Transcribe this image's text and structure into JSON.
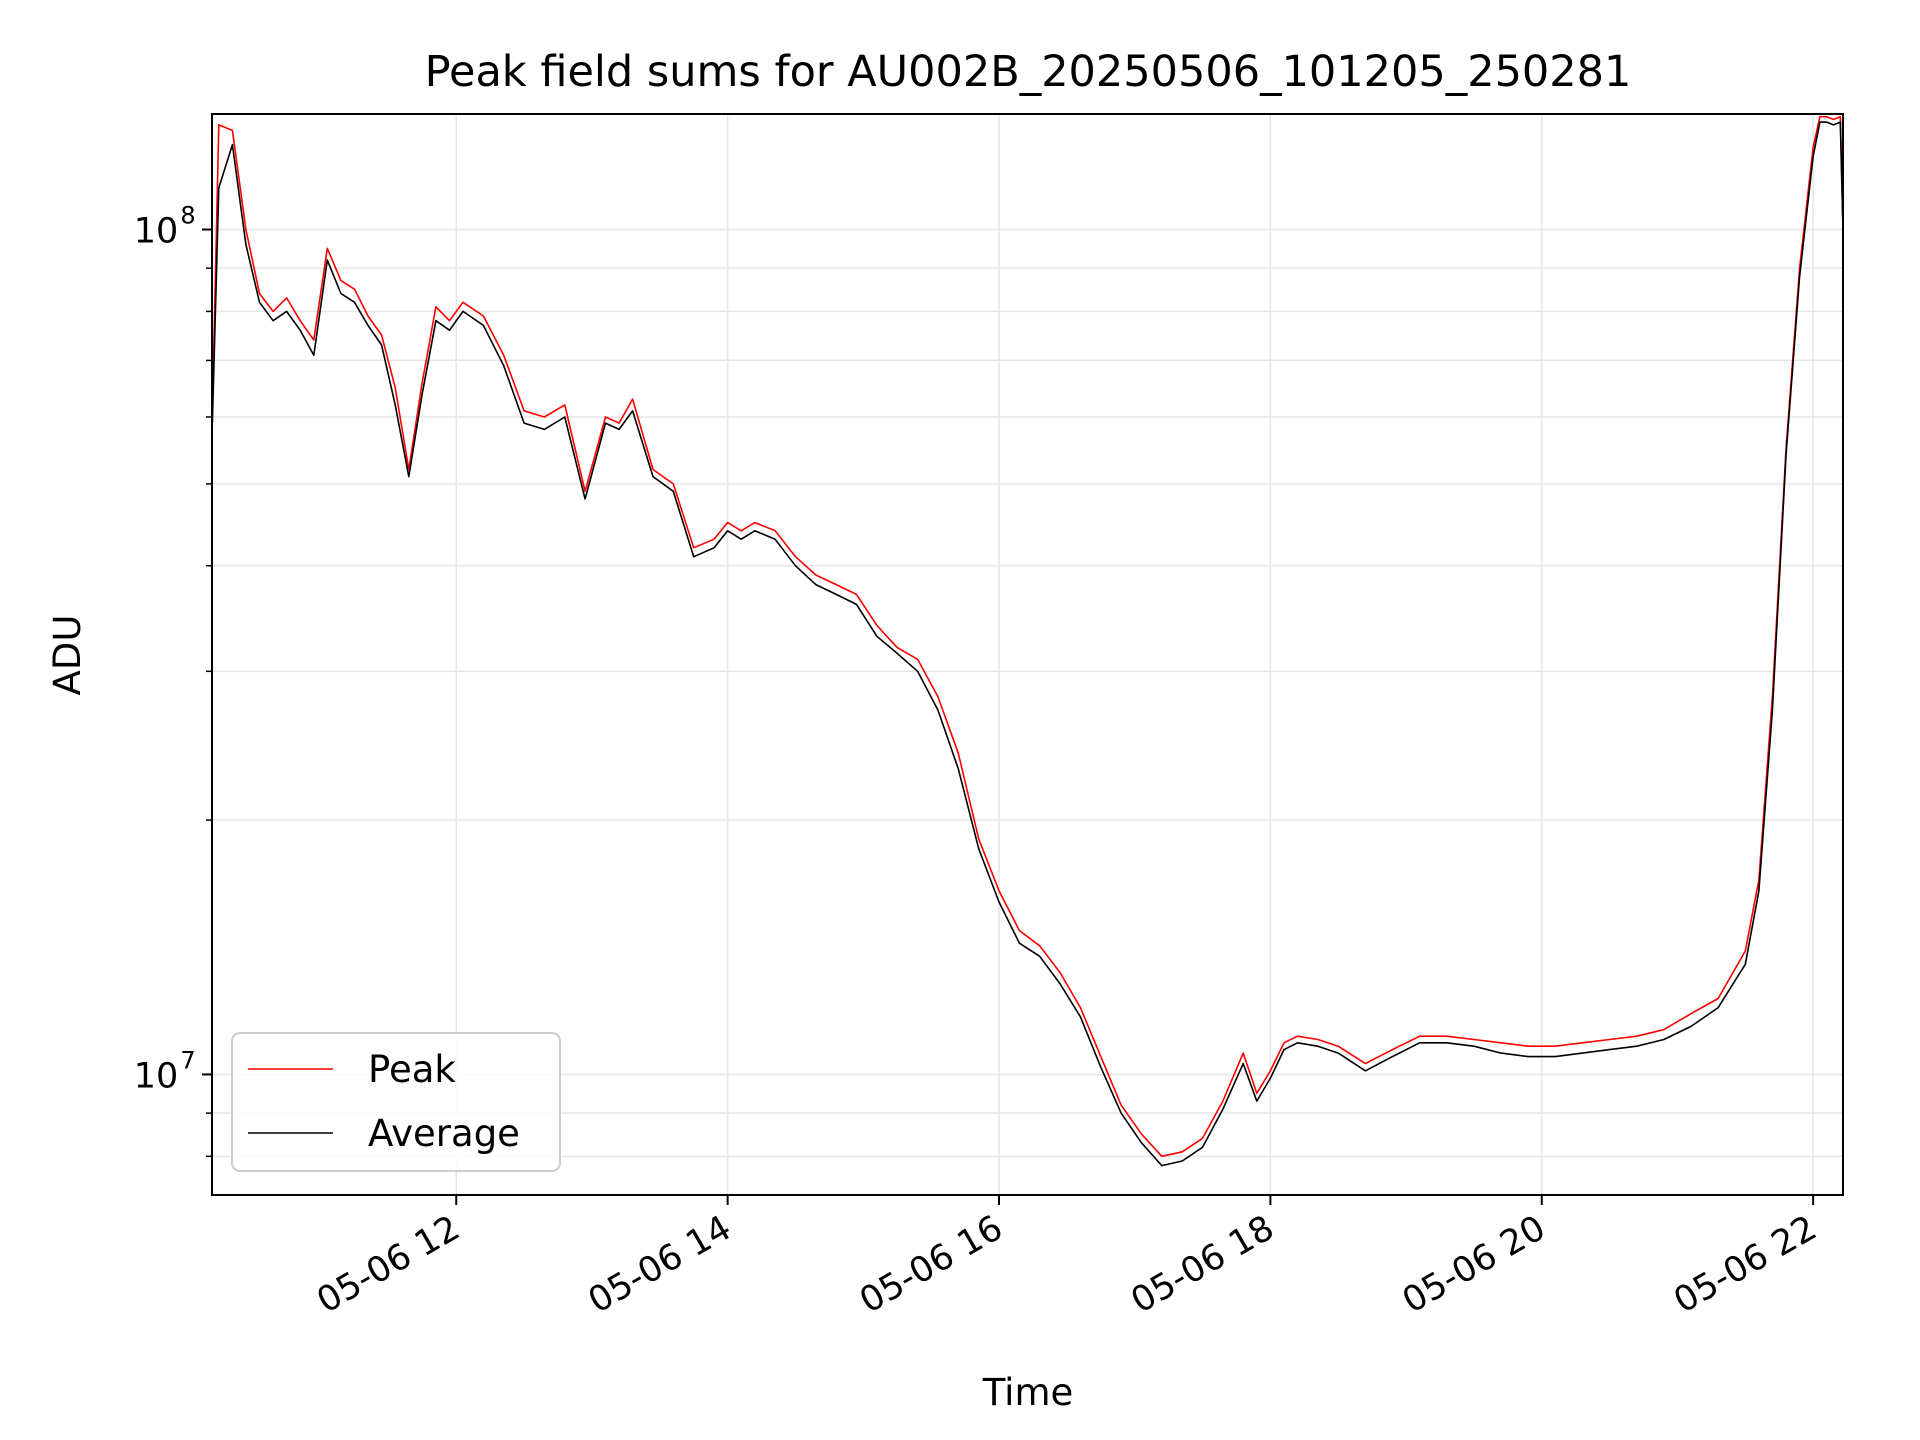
{
  "chart_data": {
    "type": "line",
    "title": "Peak field sums for AU002B_20250506_101205_250281",
    "xlabel": "Time",
    "ylabel": "ADU",
    "x_scale": "time",
    "y_scale": "log",
    "xlim": [
      "05-06 10:12",
      "05-06 22:13"
    ],
    "ylim": [
      7200000,
      137000000
    ],
    "x_ticks": [
      "05-06 12",
      "05-06 14",
      "05-06 16",
      "05-06 18",
      "05-06 20",
      "05-06 22"
    ],
    "x_tick_hours": [
      12,
      14,
      16,
      18,
      20,
      22
    ],
    "y_ticks": [
      {
        "label_base": "10",
        "label_exp": "8",
        "value": 100000000
      },
      {
        "label_base": "10",
        "label_exp": "7",
        "value": 10000000
      }
    ],
    "y_minor_ticks": [
      8000000,
      9000000,
      20000000,
      30000000,
      40000000,
      50000000,
      60000000,
      70000000,
      80000000,
      90000000
    ],
    "grid": true,
    "legend_position": "lower-left",
    "series": [
      {
        "name": "Peak",
        "color": "#ff0000",
        "x_hours": [
          10.2,
          10.25,
          10.35,
          10.45,
          10.55,
          10.65,
          10.75,
          10.85,
          10.95,
          11.05,
          11.15,
          11.25,
          11.35,
          11.45,
          11.55,
          11.65,
          11.75,
          11.85,
          11.95,
          12.05,
          12.2,
          12.35,
          12.5,
          12.65,
          12.8,
          12.95,
          13.1,
          13.2,
          13.3,
          13.45,
          13.6,
          13.75,
          13.9,
          14.0,
          14.1,
          14.2,
          14.35,
          14.5,
          14.65,
          14.8,
          14.95,
          15.1,
          15.25,
          15.4,
          15.55,
          15.7,
          15.85,
          16.0,
          16.15,
          16.3,
          16.45,
          16.6,
          16.75,
          16.9,
          17.05,
          17.2,
          17.35,
          17.5,
          17.65,
          17.8,
          17.9,
          18.0,
          18.1,
          18.2,
          18.35,
          18.5,
          18.7,
          18.9,
          19.1,
          19.3,
          19.5,
          19.7,
          19.9,
          20.1,
          20.3,
          20.5,
          20.7,
          20.9,
          21.1,
          21.3,
          21.5,
          21.6,
          21.7,
          21.8,
          21.9,
          22.0,
          22.05,
          22.1,
          22.15,
          22.2,
          22.22
        ],
        "values": [
          58000000,
          133000000,
          131000000,
          100000000,
          84000000,
          80000000,
          83000000,
          78000000,
          74000000,
          95000000,
          87000000,
          85000000,
          79000000,
          75000000,
          65000000,
          52000000,
          66000000,
          81000000,
          78000000,
          82000000,
          79000000,
          71000000,
          61000000,
          60000000,
          62000000,
          49000000,
          60000000,
          59000000,
          63000000,
          52000000,
          50000000,
          42000000,
          43000000,
          45000000,
          44000000,
          45000000,
          44000000,
          41000000,
          39000000,
          38000000,
          37000000,
          34000000,
          32000000,
          31000000,
          28000000,
          24000000,
          19000000,
          16500000,
          14800000,
          14200000,
          13200000,
          12000000,
          10500000,
          9200000,
          8500000,
          8000000,
          8100000,
          8400000,
          9300000,
          10600000,
          9500000,
          10100000,
          10900000,
          11100000,
          11000000,
          10800000,
          10300000,
          10700000,
          11100000,
          11100000,
          11000000,
          10900000,
          10800000,
          10800000,
          10900000,
          11000000,
          11100000,
          11300000,
          11800000,
          12300000,
          14000000,
          17000000,
          28000000,
          55000000,
          90000000,
          125000000,
          136000000,
          136000000,
          135000000,
          136000000,
          100000000
        ]
      },
      {
        "name": "Average",
        "color": "#000000",
        "x_hours": [
          10.2,
          10.25,
          10.35,
          10.45,
          10.55,
          10.65,
          10.75,
          10.85,
          10.95,
          11.05,
          11.15,
          11.25,
          11.35,
          11.45,
          11.55,
          11.65,
          11.75,
          11.85,
          11.95,
          12.05,
          12.2,
          12.35,
          12.5,
          12.65,
          12.8,
          12.95,
          13.1,
          13.2,
          13.3,
          13.45,
          13.6,
          13.75,
          13.9,
          14.0,
          14.1,
          14.2,
          14.35,
          14.5,
          14.65,
          14.8,
          14.95,
          15.1,
          15.25,
          15.4,
          15.55,
          15.7,
          15.85,
          16.0,
          16.15,
          16.3,
          16.45,
          16.6,
          16.75,
          16.9,
          17.05,
          17.2,
          17.35,
          17.5,
          17.65,
          17.8,
          17.9,
          18.0,
          18.1,
          18.2,
          18.35,
          18.5,
          18.7,
          18.9,
          19.1,
          19.3,
          19.5,
          19.7,
          19.9,
          20.1,
          20.3,
          20.5,
          20.7,
          20.9,
          21.1,
          21.3,
          21.5,
          21.6,
          21.7,
          21.8,
          21.9,
          22.0,
          22.05,
          22.1,
          22.15,
          22.2,
          22.22
        ],
        "values": [
          57000000,
          112000000,
          126000000,
          96000000,
          82000000,
          78000000,
          80000000,
          76000000,
          71000000,
          92000000,
          84000000,
          82000000,
          77000000,
          73000000,
          62000000,
          51000000,
          64000000,
          78000000,
          76000000,
          80000000,
          77000000,
          69000000,
          59000000,
          58000000,
          60000000,
          48000000,
          59000000,
          58000000,
          61000000,
          51000000,
          49000000,
          41000000,
          42000000,
          44000000,
          43000000,
          44000000,
          43000000,
          40000000,
          38000000,
          37000000,
          36000000,
          33000000,
          31500000,
          30000000,
          27000000,
          23000000,
          18500000,
          16000000,
          14300000,
          13800000,
          12800000,
          11700000,
          10200000,
          9000000,
          8300000,
          7800000,
          7900000,
          8200000,
          9100000,
          10300000,
          9300000,
          9900000,
          10700000,
          10900000,
          10800000,
          10600000,
          10100000,
          10500000,
          10900000,
          10900000,
          10800000,
          10600000,
          10500000,
          10500000,
          10600000,
          10700000,
          10800000,
          11000000,
          11400000,
          12000000,
          13500000,
          16500000,
          27000000,
          54000000,
          88000000,
          122000000,
          134000000,
          134000000,
          133000000,
          134000000,
          100000000
        ]
      }
    ]
  }
}
